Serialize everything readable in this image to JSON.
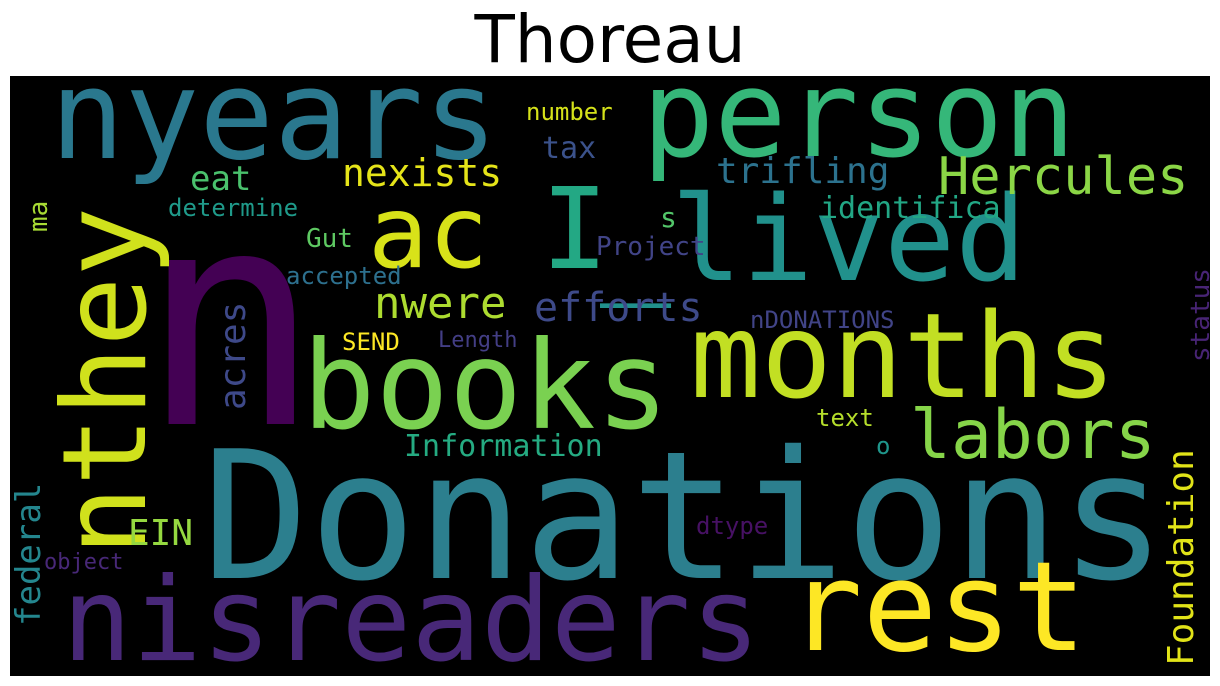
{
  "title": "Thoreau",
  "palette": {
    "background": "#000000",
    "yellow": "#fde725",
    "lightgreen": "#a0da39",
    "green": "#4ac16d",
    "teal": "#1fa187",
    "cyan": "#277f8e",
    "blue": "#365c8d",
    "indigo": "#46327e",
    "purple": "#440154"
  },
  "words": [
    {
      "text": "n",
      "color": "#440154"
    },
    {
      "text": "Donations",
      "color": "#2c7f8e"
    },
    {
      "text": "person",
      "color": "#35b779"
    },
    {
      "text": "nyears",
      "color": "#2a788e"
    },
    {
      "text": "books",
      "color": "#7ad151"
    },
    {
      "text": "months",
      "color": "#c2df23"
    },
    {
      "text": "rest",
      "color": "#fde725"
    },
    {
      "text": "nisreaders",
      "color": "#482878"
    },
    {
      "text": "ac",
      "color": "#d8e219"
    },
    {
      "text": "I",
      "color": "#23a884"
    },
    {
      "text": "_lived",
      "color": "#21918c"
    },
    {
      "text": "nthey",
      "color": "#d0e11c"
    },
    {
      "text": "labors",
      "color": "#86d549"
    },
    {
      "text": "Hercules",
      "color": "#8bd646"
    },
    {
      "text": "nexists",
      "color": "#e5e419"
    },
    {
      "text": "eat",
      "color": "#4ac16d"
    },
    {
      "text": "tax",
      "color": "#3b528b"
    },
    {
      "text": "trifling",
      "color": "#2c728e"
    },
    {
      "text": "identifica",
      "color": "#22a785"
    },
    {
      "text": "s",
      "color": "#52c569"
    },
    {
      "text": "nwere",
      "color": "#addc30"
    },
    {
      "text": "efforts",
      "color": "#3e4a89"
    },
    {
      "text": "Gut",
      "color": "#5ec962"
    },
    {
      "text": "Project",
      "color": "#414487"
    },
    {
      "text": "determine",
      "color": "#1f9a8a"
    },
    {
      "text": "accepted",
      "color": "#2d708e"
    },
    {
      "text": "ma",
      "color": "#a8db34"
    },
    {
      "text": "number",
      "color": "#d5e21a"
    },
    {
      "text": "nDONATIONS",
      "color": "#414487"
    },
    {
      "text": "SEND",
      "color": "#fde725"
    },
    {
      "text": "Length",
      "color": "#433e85"
    },
    {
      "text": "acres",
      "color": "#3e4989"
    },
    {
      "text": "status",
      "color": "#482475"
    },
    {
      "text": "Foundation",
      "color": "#e1e318"
    },
    {
      "text": "Information",
      "color": "#25ab82"
    },
    {
      "text": "text",
      "color": "#b5de2b"
    },
    {
      "text": "o",
      "color": "#1f968b"
    },
    {
      "text": "EIN",
      "color": "#95d840"
    },
    {
      "text": "federal",
      "color": "#24868e"
    },
    {
      "text": "dtype",
      "color": "#471164"
    },
    {
      "text": "object",
      "color": "#482878"
    }
  ]
}
